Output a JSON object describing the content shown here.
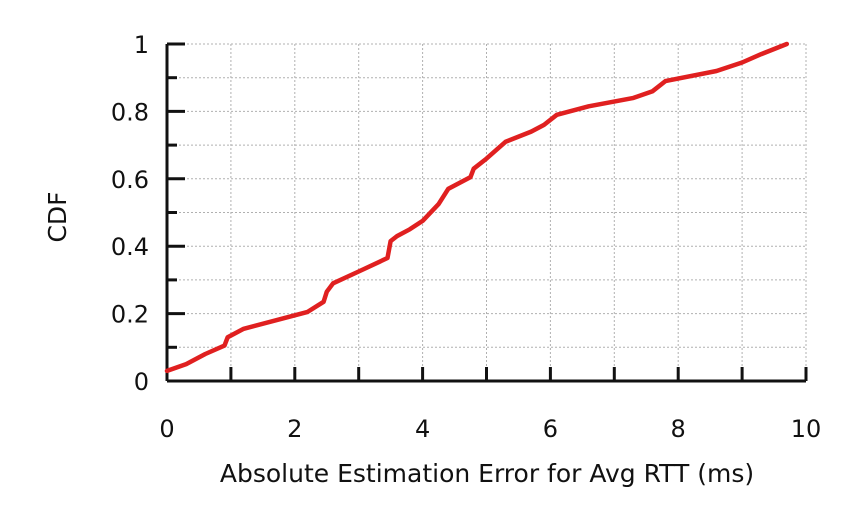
{
  "chart_data": {
    "type": "line",
    "title": "",
    "xlabel": "Absolute Estimation Error for Avg RTT (ms)",
    "ylabel": "CDF",
    "xlim": [
      0,
      10
    ],
    "ylim": [
      0,
      1
    ],
    "xticks": [
      "0",
      "2",
      "4",
      "6",
      "8",
      "10"
    ],
    "yticks": [
      "0",
      "0.2",
      "0.4",
      "0.6",
      "0.8",
      "1"
    ],
    "grid": true,
    "line_color": "#e02020",
    "series": [
      {
        "x": [
          0,
          0.3,
          0.6,
          0.9,
          0.95,
          1.2,
          1.8,
          2.2,
          2.45,
          2.5,
          2.6,
          3.0,
          3.45,
          3.5,
          3.6,
          3.8,
          4.0,
          4.2,
          4.25,
          4.4,
          4.75,
          4.8,
          5.0,
          5.3,
          5.7,
          5.9,
          6.1,
          6.6,
          7.3,
          7.6,
          7.8,
          8.6,
          9.0,
          9.3,
          9.7
        ],
        "y": [
          0.03,
          0.05,
          0.08,
          0.105,
          0.13,
          0.155,
          0.185,
          0.205,
          0.235,
          0.265,
          0.29,
          0.325,
          0.365,
          0.415,
          0.43,
          0.45,
          0.475,
          0.515,
          0.525,
          0.57,
          0.605,
          0.63,
          0.66,
          0.71,
          0.74,
          0.76,
          0.79,
          0.815,
          0.84,
          0.86,
          0.89,
          0.92,
          0.945,
          0.97,
          1.0
        ]
      }
    ]
  }
}
